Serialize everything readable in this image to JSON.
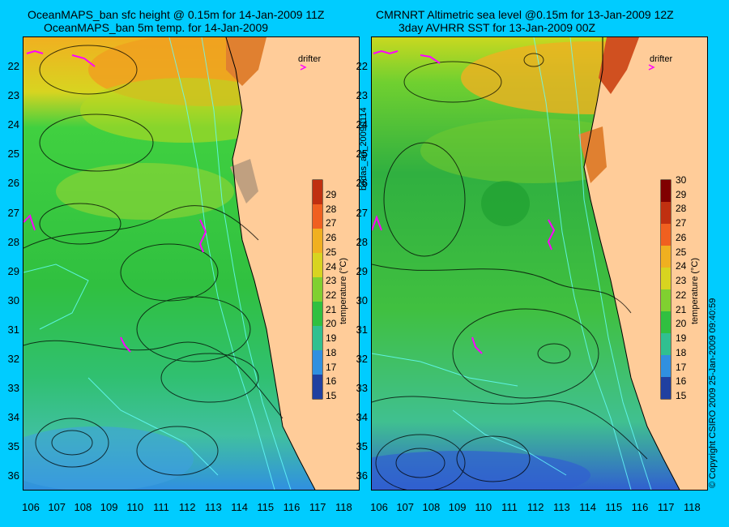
{
  "left_panel": {
    "title_line1": "OceanMAPS_ban sfc height @ 0.15m for 14-Jan-2009 11Z",
    "title_line2": "OceanMAPS_ban 5m temp. for 14-Jan-2009",
    "drifter_label": "drifter",
    "colorbar": {
      "ticks": [
        "29",
        "28",
        "27",
        "26",
        "25",
        "24",
        "23",
        "22",
        "21",
        "20",
        "19",
        "18",
        "17",
        "16",
        "15"
      ],
      "label": "temperature (°C)"
    }
  },
  "right_panel": {
    "title_line1": "CMRNRT Altimetric sea level  @0.15m  for 13-Jan-2009 12Z",
    "title_line2": "3day AVHRR SST for 13-Jan-2009 00Z",
    "drifter_label": "drifter",
    "colorbar": {
      "ticks": [
        "30",
        "29",
        "28",
        "27",
        "26",
        "25",
        "24",
        "23",
        "22",
        "21",
        "20",
        "19",
        "18",
        "17",
        "16",
        "15"
      ],
      "label": "temperature (°C)"
    }
  },
  "y_axis_ticks": [
    "22",
    "23",
    "24",
    "25",
    "26",
    "27",
    "28",
    "29",
    "30",
    "31",
    "32",
    "33",
    "34",
    "35",
    "36"
  ],
  "x_axis_ticks": [
    "106",
    "107",
    "108",
    "109",
    "110",
    "111",
    "112",
    "113",
    "114",
    "115",
    "116",
    "117",
    "118"
  ],
  "middle_label": "bodas_an_20090114",
  "copyright_label": "© Copyright CSIRO 2009   25-Jan-2009 09:40:59",
  "colors": {
    "background": "#00ccff",
    "land": "#ffcc99",
    "drifter": "#ff00ff",
    "coast_lines": "#66ffff"
  }
}
